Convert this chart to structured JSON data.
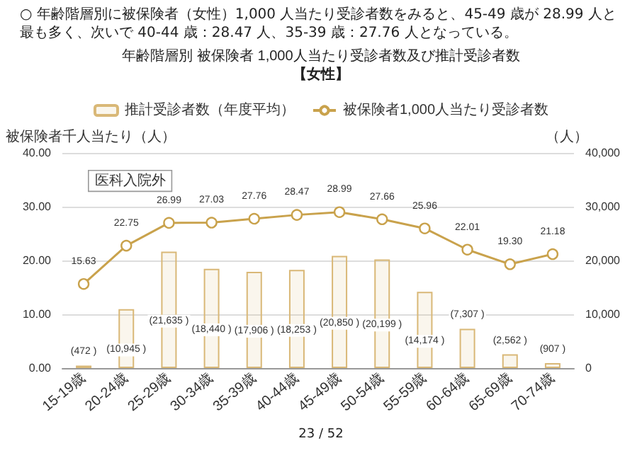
{
  "chart_data": {
    "type": "bar",
    "title": "年齢階層別 被保険者 1,000人当たり受診者数及び推計受診者数",
    "subtitle": "【女性】",
    "ylabel": "被保険者千人当たり（人）",
    "y2label": "（人）",
    "annotations": [
      "○ 年齢階層別に被保険者（女性）1,000 人当たり受診者数をみると、45-49 歳が 28.99 人と最も多く、次いで 40-44 歳：28.47 人、35-39 歳：27.76 人となっている。",
      "医科入院外",
      "23 / 52"
    ],
    "categories": [
      "15-19歳",
      "20-24歳",
      "25-29歳",
      "30-34歳",
      "35-39歳",
      "40-44歳",
      "45-49歳",
      "50-54歳",
      "55-59歳",
      "60-64歳",
      "65-69歳",
      "70-74歳"
    ],
    "series": [
      {
        "name": "推計受診者数（年度平均）",
        "axis": "y2",
        "color": "#d9b877",
        "values": [
          472,
          10945,
          21635,
          18440,
          17906,
          18253,
          20850,
          20199,
          14174,
          7307,
          2562,
          907
        ],
        "value_labels": [
          "(472 )",
          "(10,945 )",
          "(21,635 )",
          "(18,440 )",
          "(17,906 )",
          "(18,253 )",
          "(20,850 )",
          "(20,199 )",
          "(14,174 )",
          "(7,307 )",
          "(2,562 )",
          "(907 )"
        ]
      },
      {
        "name": "被保険者1,000人当たり受診者数",
        "type": "line",
        "color": "#c9a24c",
        "marker": "circle",
        "values": [
          15.63,
          22.75,
          26.99,
          27.03,
          27.76,
          28.47,
          28.99,
          27.66,
          25.96,
          22.01,
          19.3,
          21.18
        ],
        "value_labels": [
          "15.63",
          "22.75",
          "26.99",
          "27.03",
          "27.76",
          "28.47",
          "28.99",
          "27.66",
          "25.96",
          "22.01",
          "19.30",
          "21.18"
        ]
      }
    ],
    "ylim": [
      0,
      40
    ],
    "yticks": [
      {
        "value": 0,
        "label": "0.00"
      },
      {
        "value": 10,
        "label": "10.00"
      },
      {
        "value": 20,
        "label": "20.00"
      },
      {
        "value": 30,
        "label": "30.00"
      },
      {
        "value": 40,
        "label": "40.00"
      }
    ],
    "y2lim": [
      0,
      40000
    ],
    "y2ticks": [
      0,
      {
        "value": 10000,
        "label": "10,000"
      },
      {
        "value": 20000,
        "label": "20,000"
      },
      {
        "value": 30000,
        "label": "30,000"
      },
      {
        "value": 40000,
        "label": "40,000"
      }
    ],
    "grid": "y",
    "legend": "top"
  }
}
